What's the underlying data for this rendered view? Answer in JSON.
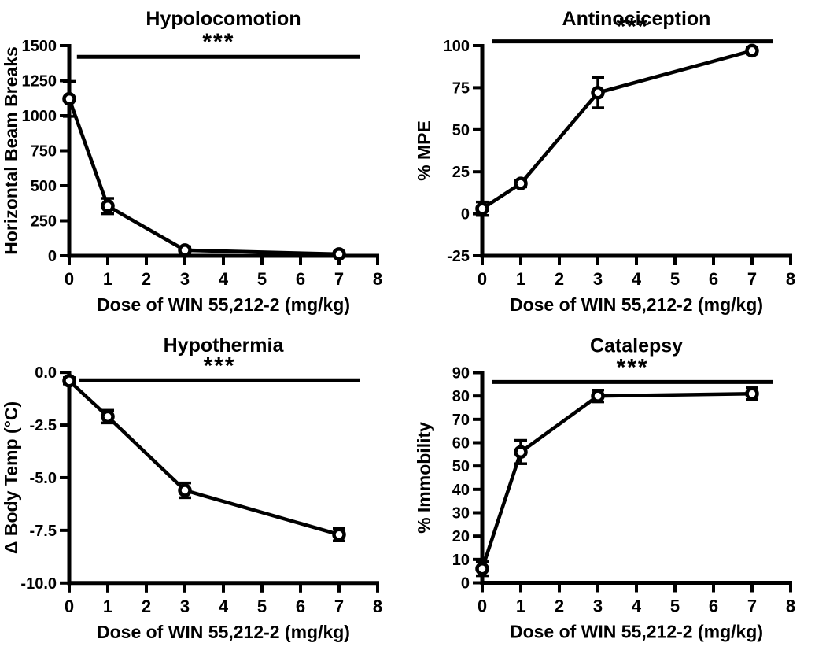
{
  "figure": {
    "background_color": "#ffffff",
    "ink_color": "#000000"
  },
  "chart_data": [
    {
      "type": "line",
      "name": "hypolocomotion",
      "title": "Hypolocomotion",
      "xlabel": "Dose of WIN 55,212-2 (mg/kg)",
      "ylabel": "Horizontal Beam Breaks",
      "x": [
        0,
        1,
        3,
        7
      ],
      "y": [
        1120,
        355,
        40,
        12
      ],
      "yerr": [
        125,
        55,
        25,
        15
      ],
      "xlim": [
        0,
        8
      ],
      "xticks": [
        0,
        1,
        2,
        3,
        4,
        5,
        6,
        7,
        8
      ],
      "xtick_labels": [
        "0",
        "1",
        "2",
        "3",
        "4",
        "5",
        "6",
        "7",
        "8"
      ],
      "ylim": [
        0,
        1500
      ],
      "yticks": [
        0,
        250,
        500,
        750,
        1000,
        1250,
        1500
      ],
      "ytick_labels": [
        "0",
        "250",
        "500",
        "750",
        "1000",
        "1250",
        "1500"
      ],
      "grid": false,
      "legend": null,
      "marker": "open-circle",
      "significance": {
        "label": "***",
        "x1": 0.2,
        "x2": 7.55,
        "y": 1420
      }
    },
    {
      "type": "line",
      "name": "antinociception",
      "title": "Antinociception",
      "xlabel": "Dose of WIN 55,212-2 (mg/kg)",
      "ylabel": "% MPE",
      "x": [
        0,
        1,
        3,
        7
      ],
      "y": [
        3,
        18,
        72,
        97
      ],
      "yerr": [
        4,
        2,
        9,
        2
      ],
      "xlim": [
        0,
        8
      ],
      "xticks": [
        0,
        1,
        2,
        3,
        4,
        5,
        6,
        7,
        8
      ],
      "xtick_labels": [
        "0",
        "1",
        "2",
        "3",
        "4",
        "5",
        "6",
        "7",
        "8"
      ],
      "ylim": [
        -25,
        100
      ],
      "yticks": [
        -25,
        0,
        25,
        50,
        75,
        100
      ],
      "ytick_labels": [
        "-25",
        "0",
        "25",
        "50",
        "75",
        "100"
      ],
      "grid": false,
      "legend": null,
      "marker": "open-circle",
      "significance": {
        "label": "***",
        "x1": 0.25,
        "x2": 7.55,
        "y": 102.5
      }
    },
    {
      "type": "line",
      "name": "hypothermia",
      "title": "Hypothermia",
      "xlabel": "Dose of WIN 55,212-2 (mg/kg)",
      "ylabel": "Δ Body Temp (°C)",
      "x": [
        0,
        1,
        3,
        7
      ],
      "y": [
        -0.4,
        -2.1,
        -5.6,
        -7.7
      ],
      "yerr": [
        0.15,
        0.3,
        0.35,
        0.3
      ],
      "xlim": [
        0,
        8
      ],
      "xticks": [
        0,
        1,
        2,
        3,
        4,
        5,
        6,
        7,
        8
      ],
      "xtick_labels": [
        "0",
        "1",
        "2",
        "3",
        "4",
        "5",
        "6",
        "7",
        "8"
      ],
      "ylim": [
        -10,
        0
      ],
      "yticks": [
        -10,
        -7.5,
        -5,
        -2.5,
        0
      ],
      "ytick_labels": [
        "-10.0",
        "-7.5",
        "-5.0",
        "-2.5",
        "0.0"
      ],
      "grid": false,
      "legend": null,
      "marker": "open-circle",
      "significance": {
        "label": "***",
        "x1": 0.25,
        "x2": 7.55,
        "y": -0.38
      }
    },
    {
      "type": "line",
      "name": "catalepsy",
      "title": "Catalepsy",
      "xlabel": "Dose of WIN 55,212-2 (mg/kg)",
      "ylabel": "% Immobility",
      "x": [
        0,
        1,
        3,
        7
      ],
      "y": [
        6,
        56,
        80,
        81
      ],
      "yerr": [
        3,
        5,
        2.5,
        2.5
      ],
      "xlim": [
        0,
        8
      ],
      "xticks": [
        0,
        1,
        2,
        3,
        4,
        5,
        6,
        7,
        8
      ],
      "xtick_labels": [
        "0",
        "1",
        "2",
        "3",
        "4",
        "5",
        "6",
        "7",
        "8"
      ],
      "ylim": [
        0,
        90
      ],
      "yticks": [
        0,
        10,
        20,
        30,
        40,
        50,
        60,
        70,
        80,
        90
      ],
      "ytick_labels": [
        "0",
        "10",
        "20",
        "30",
        "40",
        "50",
        "60",
        "70",
        "80",
        "90"
      ],
      "grid": false,
      "legend": null,
      "marker": "open-circle",
      "significance": {
        "label": "***",
        "x1": 0.25,
        "x2": 7.55,
        "y": 86
      }
    }
  ]
}
